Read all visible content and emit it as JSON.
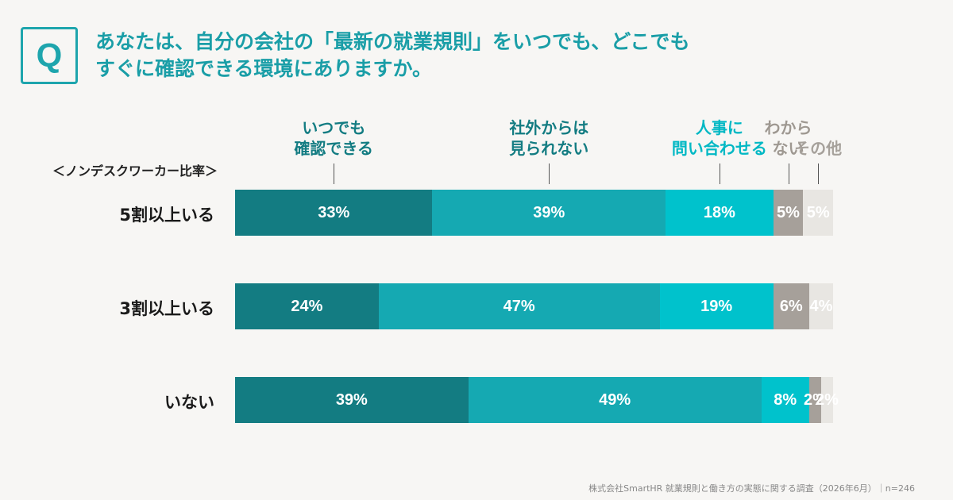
{
  "question": {
    "badge": "Q",
    "text": "あなたは、自分の会社の「最新の就業規則」をいつでも、どこでも\nすぐに確認できる環境にありますか。"
  },
  "subtitle": "＜ノンデスクワーカー比率＞",
  "source": "株式会社SmartHR 就業規則と働き方の実態に関する調査（2026年6月）｜n=246",
  "colors": [
    "#137c82",
    "#15a9b2",
    "#00c2cc",
    "#a6a09a",
    "#e8e6e2"
  ],
  "chart_data": {
    "type": "bar",
    "orientation": "horizontal-stacked-100",
    "categories": [
      "5割以上いる",
      "3割以上いる",
      "いない"
    ],
    "series": [
      {
        "name": "いつでも\n確認できる",
        "values": [
          33,
          24,
          39
        ]
      },
      {
        "name": "社外からは\n見られない",
        "values": [
          39,
          47,
          49
        ]
      },
      {
        "name": "人事に\n問い合わせる",
        "values": [
          18,
          19,
          8
        ]
      },
      {
        "name": "わから\nない",
        "values": [
          5,
          6,
          2
        ]
      },
      {
        "name": "その他",
        "values": [
          5,
          4,
          2
        ]
      }
    ],
    "data_labels": [
      [
        "33%",
        "39%",
        "18%",
        "5%",
        "5%"
      ],
      [
        "24%",
        "47%",
        "19%",
        "6%",
        "4%"
      ],
      [
        "39%",
        "49%",
        "8%",
        "2%",
        "2%"
      ]
    ],
    "legend_position": "top (labels above first bar)"
  }
}
